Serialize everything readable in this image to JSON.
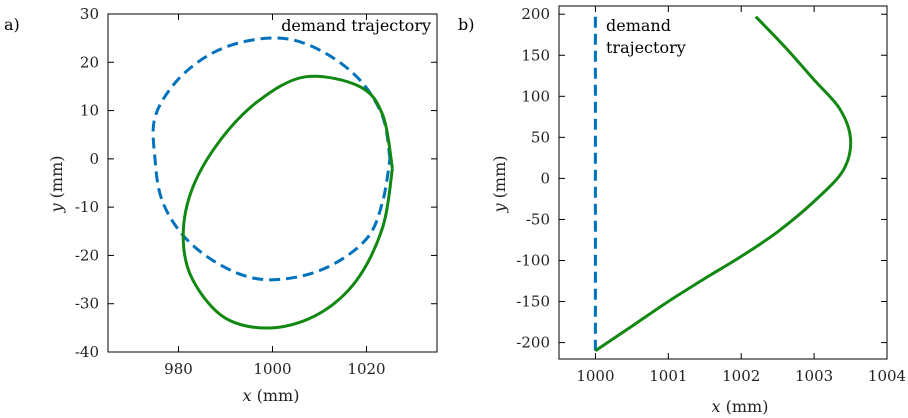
{
  "chart_data": [
    {
      "panel": "a)",
      "type": "line",
      "xlabel_var": "x",
      "xlabel_unit": "(mm)",
      "ylabel_var": "y",
      "ylabel_unit": "(mm)",
      "xlim": [
        965,
        1035
      ],
      "ylim": [
        -40,
        30
      ],
      "xticks": [
        980,
        1000,
        1020
      ],
      "yticks": [
        30,
        20,
        10,
        0,
        -10,
        -20,
        -30,
        -40
      ],
      "annotations": [
        "demand trajectory"
      ],
      "series": [
        {
          "role": "demand",
          "color": "#0072bd",
          "style": "dashed",
          "points": [
            [
              1025,
              0
            ],
            [
              1023.5,
              8.6
            ],
            [
              1018.8,
              16.1
            ],
            [
              1011.6,
              21.7
            ],
            [
              1003.5,
              24.8
            ],
            [
              995,
              24.5
            ],
            [
              986.8,
              21.7
            ],
            [
              979.6,
              16.1
            ],
            [
              975,
              8.6
            ],
            [
              975,
              0
            ],
            [
              976.5,
              -8.6
            ],
            [
              981.2,
              -16.1
            ],
            [
              988.4,
              -21.7
            ],
            [
              996.5,
              -24.8
            ],
            [
              1005,
              -24.5
            ],
            [
              1013.2,
              -21.7
            ],
            [
              1020.4,
              -16.1
            ],
            [
              1023.5,
              -8.6
            ],
            [
              1025,
              0
            ]
          ]
        },
        {
          "role": "actual",
          "color": "#118811",
          "style": "solid",
          "points": [
            [
              1025.5,
              -2
            ],
            [
              1023.5,
              9
            ],
            [
              1018.5,
              15
            ],
            [
              1007,
              17
            ],
            [
              997,
              12
            ],
            [
              989,
              4
            ],
            [
              983,
              -6
            ],
            [
              981,
              -16
            ],
            [
              983,
              -25
            ],
            [
              990,
              -33
            ],
            [
              1000,
              -35
            ],
            [
              1010,
              -32
            ],
            [
              1018,
              -25
            ],
            [
              1023.5,
              -14
            ],
            [
              1025.5,
              -2
            ]
          ]
        }
      ]
    },
    {
      "panel": "b)",
      "type": "line",
      "xlabel_var": "x",
      "xlabel_unit": "(mm)",
      "ylabel_var": "y",
      "ylabel_unit": "(mm)",
      "xlim": [
        999.5,
        1004
      ],
      "ylim": [
        -220,
        210
      ],
      "xticks": [
        1000,
        1001,
        1002,
        1003,
        1004
      ],
      "yticks": [
        200,
        150,
        100,
        50,
        0,
        -50,
        -100,
        -150,
        -200
      ],
      "annotations": [
        "demand",
        "trajectory"
      ],
      "series": [
        {
          "role": "demand",
          "color": "#0072bd",
          "style": "dashed",
          "points": [
            [
              1000,
              -210
            ],
            [
              1000,
              200
            ]
          ]
        },
        {
          "role": "actual",
          "color": "#118811",
          "style": "solid",
          "points": [
            [
              1000,
              -210
            ],
            [
              1000.5,
              -180
            ],
            [
              1001,
              -150
            ],
            [
              1001.5,
              -122
            ],
            [
              1002,
              -95
            ],
            [
              1002.5,
              -65
            ],
            [
              1003,
              -28
            ],
            [
              1003.4,
              10
            ],
            [
              1003.5,
              48
            ],
            [
              1003.35,
              85
            ],
            [
              1003,
              120
            ],
            [
              1002.6,
              160
            ],
            [
              1002.2,
              197
            ]
          ]
        }
      ]
    }
  ]
}
